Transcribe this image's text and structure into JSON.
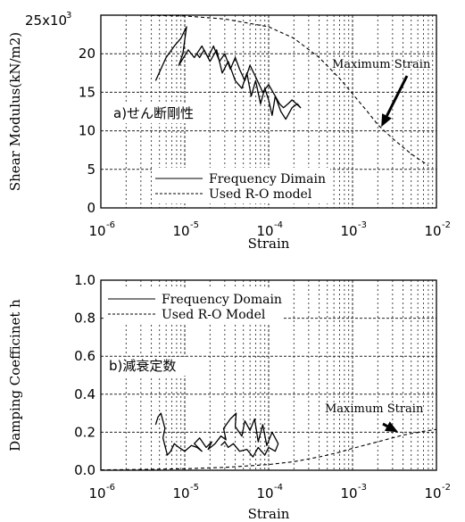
{
  "chart_data": [
    {
      "type": "line",
      "panel_label": "a)せん断剛性",
      "xlabel": "Strain",
      "ylabel": "Shear Modulus(kN/m2)",
      "x_scale": "log",
      "xlim": [
        1e-06,
        0.01
      ],
      "ylim": [
        0,
        25000
      ],
      "y_multiplier_label": "25x10",
      "y_multiplier_exp": "3",
      "y_ticks": [
        {
          "value": 0,
          "label": "0"
        },
        {
          "value": 5000,
          "label": "5"
        },
        {
          "value": 10000,
          "label": "10"
        },
        {
          "value": 15000,
          "label": "15"
        },
        {
          "value": 20000,
          "label": "20"
        }
      ],
      "x_ticks": [
        {
          "value": 1e-06,
          "base": "10",
          "exp": "-6"
        },
        {
          "value": 1e-05,
          "base": "10",
          "exp": "-5"
        },
        {
          "value": 0.0001,
          "base": "10",
          "exp": "-4"
        },
        {
          "value": 0.001,
          "base": "10",
          "exp": "-3"
        },
        {
          "value": 0.01,
          "base": "10",
          "exp": "-2"
        }
      ],
      "grid": true,
      "legend_position": "bottom-left",
      "annotation": {
        "text": "Maximum Strain",
        "arrow_to": [
          0.0022,
          10500
        ]
      },
      "series": [
        {
          "name": "Frequency Dimain",
          "style": "solid",
          "x": [
            4.5e-06,
            6e-06,
            7.5e-06,
            9e-06,
            1.05e-05,
            9.5e-06,
            8.5e-06,
            1.1e-05,
            1.3e-05,
            1.6e-05,
            2e-05,
            2.4e-05,
            2.8e-05,
            3.3e-05,
            4e-05,
            4.8e-05,
            5.5e-05,
            6.2e-05,
            7e-05,
            8e-05,
            9e-05,
            0.0001,
            0.00011,
            0.00012,
            0.000135,
            0.00015,
            0.00017,
            0.00019,
            0.000215,
            0.00024,
            0.00022,
            0.00019,
            0.00016,
            0.00014,
            0.00012,
            0.0001,
            8.5e-05,
            7e-05,
            6e-05,
            5.2e-05,
            4.5e-05,
            4e-05,
            3.5e-05,
            3e-05,
            2.6e-05,
            2.2e-05,
            1.9e-05,
            1.7e-05,
            1.5e-05,
            1.4e-05
          ],
          "y": [
            16500,
            19500,
            21000,
            22000,
            23500,
            20000,
            18500,
            20500,
            19500,
            21000,
            19000,
            20500,
            17500,
            19000,
            16500,
            15500,
            17500,
            14500,
            16500,
            13500,
            15500,
            14000,
            12000,
            14500,
            13500,
            13000,
            13500,
            14000,
            13500,
            13000,
            13500,
            13000,
            11500,
            12500,
            14500,
            16000,
            15000,
            17000,
            18500,
            16500,
            18000,
            19500,
            18000,
            20000,
            19000,
            21000,
            19500,
            20500,
            19500,
            20000
          ]
        },
        {
          "name": "Used R-O model",
          "style": "dashed",
          "x": [
            1e-06,
            3e-06,
            1e-05,
            3e-05,
            0.0001,
            0.0002,
            0.0004,
            0.0007,
            0.001,
            0.0015,
            0.002,
            0.003,
            0.005,
            0.008
          ],
          "y": [
            25000,
            25000,
            24900,
            24500,
            23500,
            22000,
            19500,
            16800,
            14800,
            12500,
            10800,
            9000,
            7000,
            5500
          ]
        }
      ]
    },
    {
      "type": "line",
      "panel_label": "b)減衰定数",
      "xlabel": "Strain",
      "ylabel": "Damping Coefficinet h",
      "x_scale": "log",
      "xlim": [
        1e-06,
        0.01
      ],
      "ylim": [
        0,
        1
      ],
      "y_ticks": [
        {
          "value": 0,
          "label": "0.0"
        },
        {
          "value": 0.2,
          "label": "0.2"
        },
        {
          "value": 0.4,
          "label": "0.4"
        },
        {
          "value": 0.6,
          "label": "0.6"
        },
        {
          "value": 0.8,
          "label": "0.8"
        },
        {
          "value": 1.0,
          "label": "1.0"
        }
      ],
      "x_ticks": [
        {
          "value": 1e-06,
          "base": "10",
          "exp": "-6"
        },
        {
          "value": 1e-05,
          "base": "10",
          "exp": "-5"
        },
        {
          "value": 0.0001,
          "base": "10",
          "exp": "-4"
        },
        {
          "value": 0.001,
          "base": "10",
          "exp": "-3"
        },
        {
          "value": 0.01,
          "base": "10",
          "exp": "-2"
        }
      ],
      "grid": true,
      "legend_position": "top-left",
      "annotation": {
        "text": "Maximum Strain",
        "arrow_to": [
          0.0035,
          0.2
        ]
      },
      "series": [
        {
          "name": "Frequency Domain",
          "style": "solid",
          "x": [
            4.5e-06,
            4.8e-06,
            5.2e-06,
            5.8e-06,
            5.5e-06,
            6.2e-06,
            6.8e-06,
            7.5e-06,
            8.5e-06,
            1e-05,
            1.2e-05,
            1.4e-05,
            1.6e-05,
            1.3e-05,
            1.5e-05,
            1.8e-05,
            2.1e-05,
            1.9e-05,
            2.3e-05,
            2.7e-05,
            3.1e-05,
            2.9e-05,
            3.5e-05,
            4.1e-05,
            4e-05,
            4.8e-05,
            5.2e-05,
            6e-05,
            6.8e-05,
            7.5e-05,
            8.5e-05,
            9.5e-05,
            0.00011,
            0.00013,
            0.00012,
            0.0001,
            9e-05,
            7.5e-05,
            6.5e-05,
            5.5e-05,
            4.5e-05,
            3.8e-05,
            3.3e-05,
            3e-05,
            2.7e-05
          ],
          "y": [
            0.24,
            0.28,
            0.3,
            0.22,
            0.17,
            0.08,
            0.1,
            0.14,
            0.12,
            0.1,
            0.13,
            0.12,
            0.1,
            0.14,
            0.17,
            0.12,
            0.15,
            0.11,
            0.14,
            0.18,
            0.16,
            0.22,
            0.27,
            0.3,
            0.23,
            0.18,
            0.26,
            0.21,
            0.27,
            0.15,
            0.24,
            0.13,
            0.2,
            0.14,
            0.1,
            0.12,
            0.08,
            0.12,
            0.07,
            0.11,
            0.1,
            0.14,
            0.12,
            0.15,
            0.13
          ]
        },
        {
          "name": "Used R-O Model",
          "style": "dashed",
          "x": [
            1e-06,
            3e-06,
            1e-05,
            3e-05,
            0.0001,
            0.0002,
            0.0004,
            0.0007,
            0.001,
            0.002,
            0.004,
            0.007,
            0.01
          ],
          "y": [
            0.002,
            0.004,
            0.008,
            0.015,
            0.03,
            0.045,
            0.07,
            0.095,
            0.115,
            0.15,
            0.185,
            0.205,
            0.215
          ]
        }
      ]
    }
  ]
}
